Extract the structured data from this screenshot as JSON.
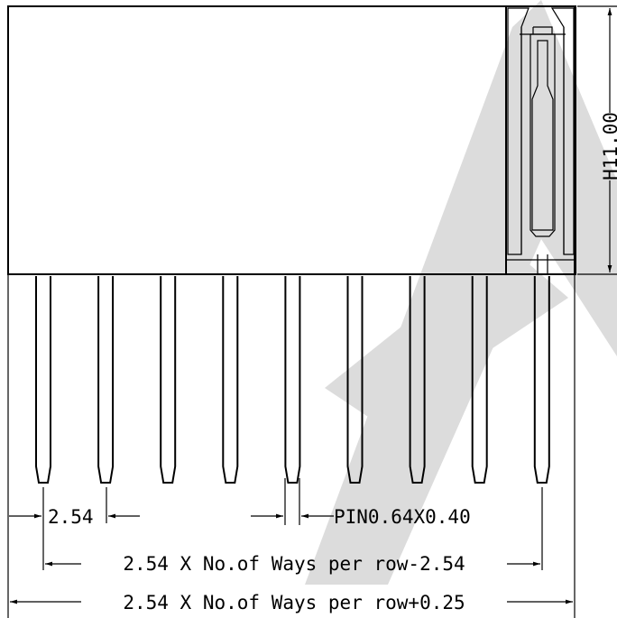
{
  "dimensions": {
    "height": "H11.00",
    "pitch": "2.54",
    "pin": "PIN0.64X0.40",
    "span_inner": "2.54 X No.of Ways per row-2.54",
    "span_outer": "2.54 X No.of Ways per row+0.25"
  },
  "pins": {
    "count": 9
  },
  "colors": {
    "line": "#000000",
    "watermark": "#d9d9d9",
    "hatch": "#000000"
  }
}
